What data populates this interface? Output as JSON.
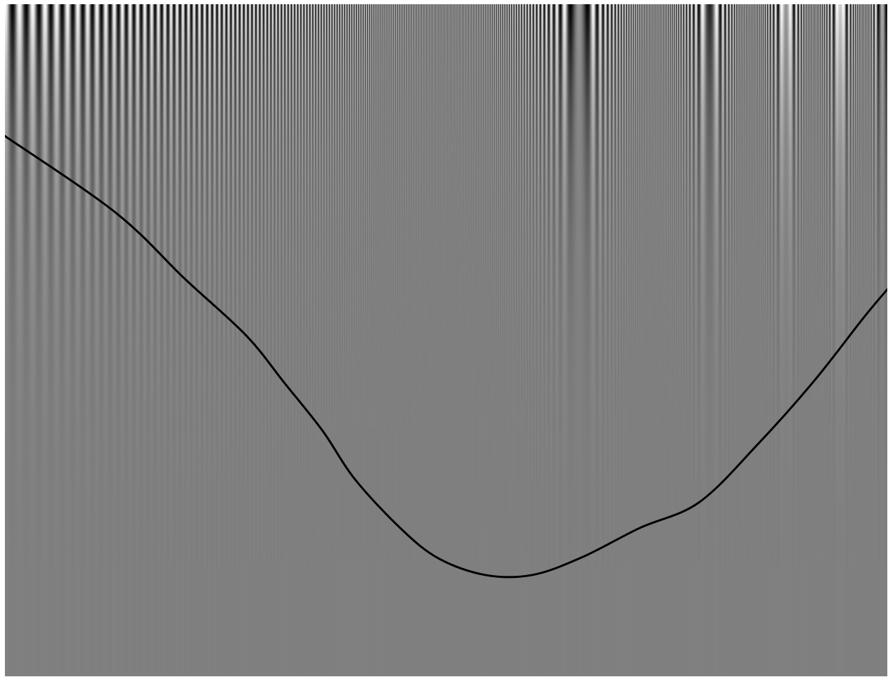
{
  "chart_data": {
    "type": "line",
    "title": "",
    "xlabel": "",
    "ylabel": "",
    "x_scale": "log",
    "y_scale": "log",
    "grid": false,
    "legend": null,
    "background": {
      "kind": "campbell-robson-grating",
      "mean_luminance": 0.5,
      "spatial_frequency_range": [
        0.5,
        54
      ],
      "contrast_range": [
        0.003,
        1.0
      ]
    },
    "series": [
      {
        "name": "",
        "color": "#000000",
        "x": [
          0.5,
          0.9,
          1.3,
          1.8,
          2.2,
          2.7,
          3.2,
          4.1,
          5.0,
          6.4,
          8.2,
          10.7,
          14.5,
          19.9,
          27.3,
          36.6,
          47.6,
          54.0
        ],
        "y": [
          0.32,
          0.165,
          0.093,
          0.057,
          0.038,
          0.025,
          0.0165,
          0.0107,
          0.0083,
          0.0072,
          0.0072,
          0.0084,
          0.0108,
          0.0135,
          0.0225,
          0.0385,
          0.0665,
          0.085
        ]
      }
    ]
  }
}
